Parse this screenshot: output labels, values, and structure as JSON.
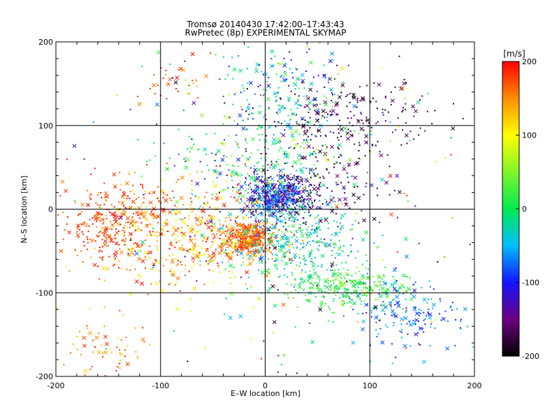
{
  "chart_data": {
    "type": "scatter",
    "title": "Tromsø 20140430 17:42:00–17:43:43",
    "subtitle": "RwPretec (8p) EXPERIMENTAL SKYMAP",
    "xlabel": "E–W location [km]",
    "ylabel": "N–S location [km]",
    "xlim": [
      -200,
      200
    ],
    "ylim": [
      -200,
      200
    ],
    "x_ticks": [
      "-200",
      "-100",
      "0",
      "100",
      "200"
    ],
    "y_ticks": [
      "-200",
      "-100",
      "0",
      "100",
      "200"
    ],
    "grid": true,
    "colorbar": {
      "label": "[m/s]",
      "range": [
        -200,
        200
      ],
      "ticks": [
        "200",
        "100",
        "0",
        "-100",
        "-200"
      ],
      "colormap": "black-purple-blue-cyan-green-yellow-red"
    },
    "markers": [
      "dot",
      "x"
    ],
    "clusters": [
      {
        "cx": 10,
        "cy": 15,
        "sx": 16,
        "sy": 12,
        "n": 520,
        "vmin": -160,
        "vmax": -40
      },
      {
        "cx": -15,
        "cy": -35,
        "sx": 12,
        "sy": 10,
        "n": 320,
        "vmin": 140,
        "vmax": 200
      },
      {
        "cx": -75,
        "cy": -30,
        "sx": 45,
        "sy": 30,
        "n": 520,
        "vmin": 80,
        "vmax": 200
      },
      {
        "cx": -150,
        "cy": -15,
        "sx": 25,
        "sy": 25,
        "n": 260,
        "vmin": 150,
        "vmax": 200
      },
      {
        "cx": 30,
        "cy": -40,
        "sx": 30,
        "sy": 25,
        "n": 380,
        "vmin": -80,
        "vmax": 40
      },
      {
        "cx": 75,
        "cy": -95,
        "sx": 30,
        "sy": 12,
        "n": 280,
        "vmin": -20,
        "vmax": 60
      },
      {
        "cx": 140,
        "cy": -125,
        "sx": 30,
        "sy": 22,
        "n": 170,
        "vmin": -120,
        "vmax": -30
      },
      {
        "cx": 80,
        "cy": 110,
        "sx": 40,
        "sy": 22,
        "n": 200,
        "vmin": -200,
        "vmax": -150
      },
      {
        "cx": 20,
        "cy": 140,
        "sx": 30,
        "sy": 30,
        "n": 200,
        "vmin": -120,
        "vmax": 40
      },
      {
        "cx": 45,
        "cy": 25,
        "sx": 30,
        "sy": 30,
        "n": 200,
        "vmin": -200,
        "vmax": -140
      },
      {
        "cx": -5,
        "cy": 50,
        "sx": 45,
        "sy": 35,
        "n": 280,
        "vmin": -100,
        "vmax": 80
      },
      {
        "cx": -90,
        "cy": 150,
        "sx": 20,
        "sy": 15,
        "n": 35,
        "vmin": 130,
        "vmax": 200
      },
      {
        "cx": -150,
        "cy": -170,
        "sx": 25,
        "sy": 22,
        "n": 70,
        "vmin": 110,
        "vmax": 200
      },
      {
        "cx": 0,
        "cy": 0,
        "sx": 100,
        "sy": 100,
        "n": 260,
        "vmin": -200,
        "vmax": 200
      }
    ]
  }
}
